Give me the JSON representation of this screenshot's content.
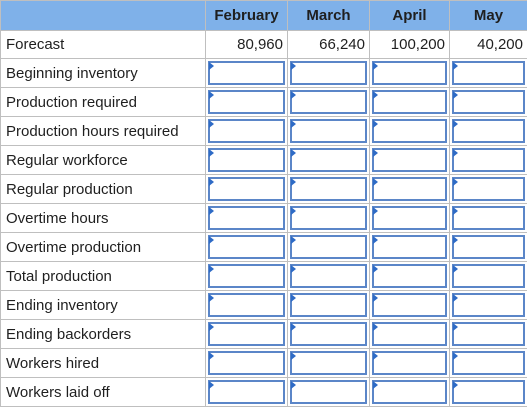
{
  "columns": [
    "February",
    "March",
    "April",
    "May"
  ],
  "forecast": {
    "label": "Forecast",
    "values": [
      "80,960",
      "66,240",
      "100,200",
      "40,200"
    ]
  },
  "rows": [
    {
      "label": "Beginning inventory",
      "key": "beginning-inventory",
      "values": [
        "",
        "",
        "",
        ""
      ]
    },
    {
      "label": "Production required",
      "key": "production-required",
      "values": [
        "",
        "",
        "",
        ""
      ]
    },
    {
      "label": "Production hours required",
      "key": "production-hours-required",
      "values": [
        "",
        "",
        "",
        ""
      ]
    },
    {
      "label": "Regular workforce",
      "key": "regular-workforce",
      "values": [
        "",
        "",
        "",
        ""
      ]
    },
    {
      "label": "Regular production",
      "key": "regular-production",
      "values": [
        "",
        "",
        "",
        ""
      ]
    },
    {
      "label": "Overtime hours",
      "key": "overtime-hours",
      "values": [
        "",
        "",
        "",
        ""
      ]
    },
    {
      "label": "Overtime production",
      "key": "overtime-production",
      "values": [
        "",
        "",
        "",
        ""
      ]
    },
    {
      "label": "Total production",
      "key": "total-production",
      "values": [
        "",
        "",
        "",
        ""
      ]
    },
    {
      "label": "Ending inventory",
      "key": "ending-inventory",
      "values": [
        "",
        "",
        "",
        ""
      ]
    },
    {
      "label": "Ending backorders",
      "key": "ending-backorders",
      "values": [
        "",
        "",
        "",
        ""
      ]
    },
    {
      "label": "Workers hired",
      "key": "workers-hired",
      "values": [
        "",
        "",
        "",
        ""
      ]
    },
    {
      "label": "Workers laid off",
      "key": "workers-laid-off",
      "values": [
        "",
        "",
        "",
        ""
      ]
    }
  ],
  "colors": {
    "header_bg": "#7fb1e9",
    "grid_line": "#bfbfbf",
    "input_border": "#5b86c8",
    "input_marker": "#2e6bc6"
  }
}
